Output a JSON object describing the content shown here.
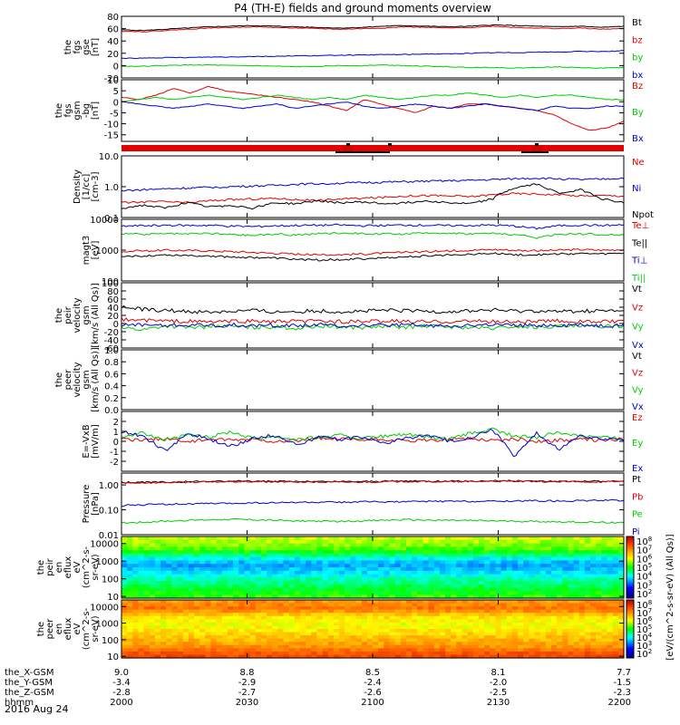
{
  "title": "P4 (TH-E) fields and ground moments overview",
  "date": "2016 Aug 24",
  "colors": {
    "black": "#000000",
    "red": "#e00000",
    "green": "#00cc00",
    "blue": "#0000cc"
  },
  "chart_data": [
    {
      "type": "line",
      "ylabel": [
        "the",
        "fgs",
        "gse",
        "[nT]"
      ],
      "ylim": [
        -20,
        80
      ],
      "ticks": [
        "80",
        "60",
        "40",
        "20",
        "0",
        "-20"
      ],
      "tick_values": [
        80,
        60,
        40,
        20,
        0,
        -20
      ],
      "series": [
        {
          "name": "Bt",
          "color": "#000000",
          "y": [
            58,
            57,
            59,
            61,
            63,
            64,
            65,
            64,
            63,
            62,
            61,
            62,
            64,
            65,
            64,
            63,
            64,
            66,
            65,
            64,
            63,
            64,
            62,
            64
          ]
        },
        {
          "name": "bz",
          "color": "#e00000",
          "y": [
            56,
            55,
            57,
            59,
            61,
            62,
            63,
            62,
            61,
            60,
            59,
            60,
            61,
            63,
            62,
            61,
            62,
            64,
            62,
            61,
            60,
            61,
            59,
            60
          ]
        },
        {
          "name": "by",
          "color": "#00cc00",
          "y": [
            -1,
            -1,
            0,
            1,
            1,
            0,
            0,
            -1,
            -2,
            -1,
            0,
            0,
            1,
            0,
            -1,
            -2,
            -3,
            -3,
            -4,
            -3,
            -2,
            -3,
            -4,
            -3
          ]
        },
        {
          "name": "bx",
          "color": "#0000cc",
          "y": [
            12,
            12,
            13,
            13,
            14,
            14,
            15,
            15,
            16,
            16,
            17,
            17,
            18,
            18,
            19,
            19,
            20,
            21,
            21,
            22,
            22,
            23,
            23,
            24
          ]
        }
      ]
    },
    {
      "type": "line",
      "ylabel": [
        "the",
        "fgs",
        "gsm",
        "-bg",
        "[nT]"
      ],
      "ylim": [
        -18,
        10
      ],
      "ticks": [
        "10",
        "5",
        "0",
        "-5",
        "-10",
        "-15"
      ],
      "tick_values": [
        10,
        5,
        0,
        -5,
        -10,
        -15
      ],
      "series": [
        {
          "name": "Bz",
          "color": "#e00000",
          "y": [
            2,
            1,
            3,
            6,
            4,
            7,
            5,
            4,
            3,
            2,
            1,
            0,
            -2,
            -4,
            1,
            -1,
            -3,
            -5,
            -2,
            -3,
            -1,
            -1,
            -2,
            -3,
            -4,
            -6,
            -10,
            -13,
            -12,
            -9
          ]
        },
        {
          "name": "By",
          "color": "#00cc00",
          "y": [
            0,
            1,
            2,
            1,
            2,
            3,
            2,
            1,
            2,
            3,
            2,
            1,
            2,
            1,
            3,
            2,
            1,
            2,
            3,
            3,
            4,
            3,
            2,
            3,
            2,
            3,
            3,
            2,
            1,
            1
          ]
        },
        {
          "name": "Bx",
          "color": "#0000cc",
          "y": [
            0,
            -1,
            -2,
            -3,
            -2,
            -1,
            -2,
            -3,
            -2,
            -1,
            -3,
            -2,
            -1,
            0,
            -2,
            -3,
            -2,
            -1,
            -2,
            -3,
            -2,
            -1,
            -2,
            -3,
            -4,
            -2,
            -3,
            -3,
            -2,
            -2
          ]
        }
      ]
    },
    {
      "type": "line",
      "scale": "log",
      "ylabel": [
        "Density",
        "[1/cc]",
        "[cm-3]"
      ],
      "ylim": [
        0.1,
        10
      ],
      "ticks": [
        "10.0",
        "1.0",
        "0.1"
      ],
      "tick_values": [
        10,
        1,
        0.1
      ],
      "series": [
        {
          "name": "Ne",
          "color": "#e00000",
          "y": [
            0.3,
            0.32,
            0.33,
            0.3,
            0.35,
            0.38,
            0.4,
            0.42,
            0.38,
            0.36,
            0.4,
            0.42,
            0.45,
            0.5,
            0.52,
            0.5,
            0.48,
            0.55,
            0.6,
            0.58,
            0.55,
            0.5,
            0.52,
            0.5
          ]
        },
        {
          "name": "Ni",
          "color": "#0000cc",
          "y": [
            0.75,
            0.8,
            0.85,
            0.9,
            0.95,
            1.0,
            1.05,
            1.1,
            1.2,
            1.25,
            1.3,
            1.35,
            1.4,
            1.45,
            1.5,
            1.55,
            1.6,
            1.7,
            1.8,
            1.9,
            1.8,
            1.7,
            1.75,
            1.9
          ]
        },
        {
          "name": "Npot",
          "color": "#000000",
          "y": [
            0.2,
            0.25,
            0.2,
            0.3,
            0.22,
            0.25,
            0.2,
            0.3,
            0.28,
            0.35,
            0.3,
            0.32,
            0.28,
            0.3,
            0.35,
            0.3,
            0.28,
            0.4,
            0.9,
            1.2,
            0.6,
            0.8,
            0.4,
            0.3
          ]
        }
      ]
    },
    {
      "type": "line",
      "scale": "log",
      "ylabel": [
        "magt3",
        "[eV]"
      ],
      "ylim": [
        100,
        10000
      ],
      "ticks": [
        "10000",
        "1000",
        "100"
      ],
      "tick_values": [
        10000,
        1000,
        100
      ],
      "series": [
        {
          "name": "Te⊥",
          "color": "#e00000",
          "y": [
            900,
            950,
            1000,
            980,
            950,
            900,
            850,
            800,
            750,
            700,
            720,
            750,
            800,
            850,
            900,
            950,
            1000,
            1050,
            1000,
            950,
            1000,
            1050,
            1000,
            1050
          ]
        },
        {
          "name": "Te||",
          "color": "#000000",
          "y": [
            600,
            650,
            700,
            680,
            650,
            600,
            580,
            550,
            500,
            480,
            500,
            520,
            560,
            600,
            650,
            700,
            750,
            780,
            720,
            700,
            750,
            780,
            750,
            800
          ]
        },
        {
          "name": "Ti⊥",
          "color": "#0000cc",
          "y": [
            6000,
            6200,
            6500,
            6300,
            6400,
            6000,
            5800,
            6100,
            6300,
            6400,
            6500,
            6200,
            6300,
            6500,
            6400,
            6200,
            6300,
            6500,
            6000,
            5000,
            6200,
            6500,
            6300,
            6500
          ]
        },
        {
          "name": "Ti||",
          "color": "#00cc00",
          "y": [
            3500,
            3200,
            3400,
            3300,
            3500,
            3200,
            3000,
            3300,
            3100,
            3400,
            3600,
            3500,
            3300,
            3400,
            3500,
            3600,
            3400,
            3500,
            3200,
            2500,
            3300,
            3400,
            3200,
            3100
          ]
        }
      ]
    },
    {
      "type": "line",
      "ylabel": [
        "the",
        "peir",
        "velocity",
        "gsm",
        "[km/s (All Qs)]"
      ],
      "ylim": [
        -60,
        100
      ],
      "ticks": [
        "100",
        "80",
        "60",
        "40",
        "20",
        "0",
        "-20",
        "-40",
        "-60"
      ],
      "tick_values": [
        100,
        80,
        60,
        40,
        20,
        0,
        -20,
        -40,
        -60
      ],
      "series": [
        {
          "name": "Vt",
          "color": "#000000",
          "y": [
            40,
            35,
            32,
            30,
            28,
            30,
            32,
            28,
            30,
            31,
            29,
            30,
            32,
            31,
            30,
            29,
            31,
            33,
            30,
            31,
            29,
            30,
            31,
            30
          ]
        },
        {
          "name": "Vz",
          "color": "#e00000",
          "y": [
            10,
            8,
            6,
            5,
            4,
            5,
            6,
            4,
            5,
            6,
            5,
            4,
            6,
            5,
            4,
            5,
            6,
            5,
            4,
            5,
            6,
            5,
            4,
            5
          ]
        },
        {
          "name": "Vy",
          "color": "#00cc00",
          "y": [
            -10,
            -15,
            -5,
            -10,
            -8,
            -6,
            -10,
            -8,
            -12,
            -6,
            -8,
            -10,
            -7,
            -9,
            -6,
            -8,
            -10,
            -12,
            -7,
            -9,
            -6,
            -8,
            -7,
            -6
          ]
        },
        {
          "name": "Vx",
          "color": "#0000cc",
          "y": [
            -5,
            -3,
            -6,
            -4,
            -5,
            -3,
            -6,
            -4,
            -5,
            -3,
            -6,
            -4,
            -5,
            -3,
            -6,
            -4,
            -5,
            -3,
            -6,
            -4,
            -5,
            -3,
            -6,
            -4
          ]
        }
      ]
    },
    {
      "type": "line",
      "ylabel": [
        "the",
        "peer",
        "velocity",
        "gsm",
        "[km/s (All Qs)]"
      ],
      "ylim": [
        0,
        1
      ],
      "ticks": [
        "1.0",
        "0.8",
        "0.6",
        "0.4",
        "0.2",
        "0.0"
      ],
      "tick_values": [
        1,
        0.8,
        0.6,
        0.4,
        0.2,
        0
      ],
      "legend": [
        "Vt",
        "Vz",
        "Vy",
        "Vx"
      ],
      "legend_colors": [
        "#000000",
        "#e00000",
        "#00cc00",
        "#0000cc"
      ],
      "series": []
    },
    {
      "type": "line",
      "ylabel": [
        "E=-VxB",
        "[mV/m]"
      ],
      "ylim": [
        -3,
        3
      ],
      "ticks": [
        "2",
        "1",
        "0",
        "-1",
        "-2"
      ],
      "tick_values": [
        2,
        1,
        0,
        -1,
        -2
      ],
      "series": [
        {
          "name": "Ez",
          "color": "#e00000",
          "y": [
            0.2,
            0.1,
            0.3,
            0.0,
            0.2,
            0.1,
            0.2,
            0.0,
            0.1,
            0.3,
            0.2,
            0.1,
            0.2,
            0.0,
            0.1,
            0.2,
            0.3,
            0.1,
            0.2,
            0.0,
            0.1,
            0.2,
            0.1,
            0.2
          ]
        },
        {
          "name": "Ey",
          "color": "#00cc00",
          "y": [
            0.5,
            0.8,
            0.2,
            0.6,
            0.4,
            1.0,
            0.3,
            0.5,
            0.2,
            0.4,
            0.6,
            0.3,
            0.5,
            0.7,
            0.4,
            0.2,
            0.8,
            1.2,
            0.5,
            0.4,
            0.9,
            0.6,
            0.4,
            0.3
          ]
        },
        {
          "name": "Ex",
          "color": "#0000cc",
          "y": [
            1.0,
            0.5,
            -1.0,
            0.8,
            0.2,
            -0.5,
            0.3,
            0.6,
            -0.3,
            0.4,
            0.2,
            0.5,
            -0.2,
            0.3,
            0.6,
            0.0,
            0.4,
            1.2,
            -1.5,
            0.8,
            -0.8,
            0.5,
            0.3,
            0.2
          ]
        }
      ]
    },
    {
      "type": "line",
      "scale": "log",
      "ylabel": [
        "Pressure",
        "[nPa]"
      ],
      "ylim": [
        0.01,
        3
      ],
      "ticks": [
        "1.00",
        "0.10",
        "0.01"
      ],
      "tick_values": [
        1,
        0.1,
        0.01
      ],
      "series": [
        {
          "name": "Pt",
          "color": "#000000",
          "y": [
            1.25,
            1.28,
            1.3,
            1.35,
            1.38,
            1.4,
            1.42,
            1.4,
            1.38,
            1.36,
            1.35,
            1.38,
            1.4,
            1.45,
            1.42,
            1.4,
            1.42,
            1.48,
            1.45,
            1.42,
            1.4,
            1.42,
            1.38,
            1.45
          ]
        },
        {
          "name": "Pb",
          "color": "#e00000",
          "y": [
            1.2,
            1.22,
            1.25,
            1.3,
            1.32,
            1.35,
            1.36,
            1.34,
            1.32,
            1.3,
            1.29,
            1.32,
            1.35,
            1.38,
            1.36,
            1.34,
            1.36,
            1.42,
            1.38,
            1.36,
            1.34,
            1.36,
            1.32,
            1.38
          ]
        },
        {
          "name": "Pe",
          "color": "#00cc00",
          "y": [
            0.03,
            0.032,
            0.035,
            0.038,
            0.04,
            0.042,
            0.04,
            0.038,
            0.036,
            0.035,
            0.034,
            0.036,
            0.038,
            0.04,
            0.039,
            0.038,
            0.037,
            0.036,
            0.035,
            0.034,
            0.033,
            0.032,
            0.031,
            0.03
          ]
        },
        {
          "name": "Pi",
          "color": "#0000cc",
          "y": [
            0.15,
            0.16,
            0.17,
            0.17,
            0.18,
            0.18,
            0.19,
            0.19,
            0.2,
            0.2,
            0.2,
            0.21,
            0.21,
            0.21,
            0.22,
            0.22,
            0.22,
            0.22,
            0.23,
            0.23,
            0.23,
            0.23,
            0.24,
            0.24
          ]
        }
      ]
    },
    {
      "type": "heatmap",
      "ylabel": [
        "the",
        "peir",
        "en",
        "eflux",
        "eV",
        "(cm^2-s-",
        "sr-eV)"
      ],
      "scale": "log",
      "ylim": [
        8,
        25000
      ],
      "ticks": [
        "10000",
        "1000",
        "100",
        "10"
      ],
      "tick_values": [
        10000,
        1000,
        100,
        10
      ],
      "profile": [
        0.62,
        0.6,
        0.58,
        0.55,
        0.5,
        0.42,
        0.35,
        0.3,
        0.28,
        0.3,
        0.33,
        0.36,
        0.4,
        0.42,
        0.45,
        0.48,
        0.5,
        0.52
      ],
      "colorbar": {
        "ticks": [
          "10^8",
          "10^7",
          "10^6",
          "10^5",
          "10^4",
          "10^3",
          "10^2"
        ],
        "label": "[eV/(cm^2-s-sr-eV) (All Qs)]"
      }
    },
    {
      "type": "heatmap",
      "ylabel": [
        "the",
        "peer",
        "en",
        "eflux",
        "eV",
        "(cm^2-s-",
        "sr-eV)"
      ],
      "scale": "log",
      "ylim": [
        8,
        25000
      ],
      "ticks": [
        "10000",
        "1000",
        "100",
        "10"
      ],
      "tick_values": [
        10000,
        1000,
        100,
        10
      ],
      "profile": [
        0.78,
        0.8,
        0.82,
        0.78,
        0.72,
        0.68,
        0.66,
        0.65,
        0.66,
        0.68,
        0.7,
        0.72,
        0.74,
        0.76,
        0.78,
        0.82,
        0.86,
        0.88
      ],
      "colorbar": {
        "ticks": [
          "10^8",
          "10^7",
          "10^6",
          "10^5",
          "10^4",
          "10^3",
          "10^2"
        ],
        "label": "[eV/(cm^2-s-sr-eV) (All Qs)]"
      }
    }
  ],
  "xaxis": {
    "labels": [
      "the_X-GSM",
      "the_Y-GSM",
      "the_Z-GSM",
      "hhmm"
    ],
    "columns": [
      [
        "9.0",
        "-3.4",
        "-2.8",
        "2000"
      ],
      [
        "8.8",
        "-2.9",
        "-2.7",
        "2030"
      ],
      [
        "8.5",
        "-2.4",
        "-2.6",
        "2100"
      ],
      [
        "8.1",
        "-2.0",
        "-2.5",
        "2130"
      ],
      [
        "7.7",
        "-1.5",
        "-2.3",
        "2200"
      ]
    ]
  }
}
